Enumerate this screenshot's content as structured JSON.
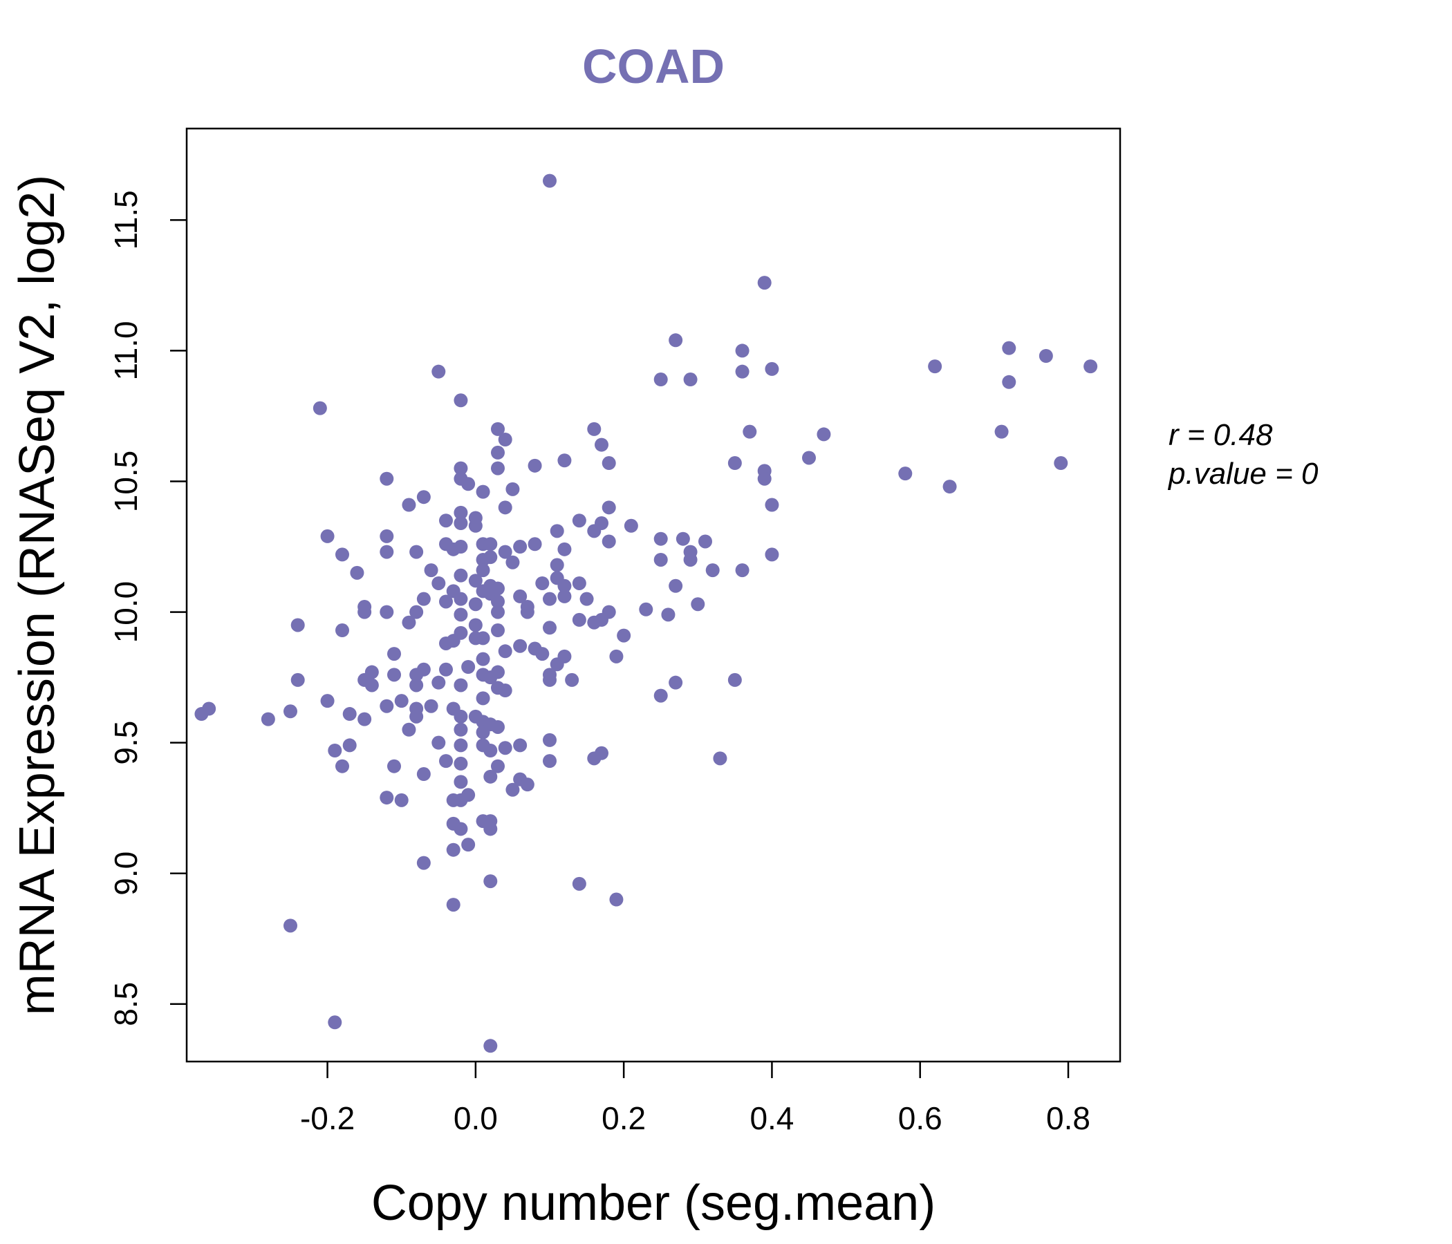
{
  "colors": {
    "point": "#7570b3",
    "title": "#7570b3",
    "axis": "#000000"
  },
  "annotation": {
    "r_text": "r = 0.48",
    "p_text": "p.value = 0"
  },
  "chart_data": {
    "type": "scatter",
    "title": "COAD",
    "xlabel": "Copy number (seg.mean)",
    "ylabel": "mRNA Expression (RNASeq V2, log2)",
    "xlim": [
      -0.39,
      0.87
    ],
    "ylim": [
      8.28,
      11.85
    ],
    "xticks": [
      -0.2,
      0.0,
      0.2,
      0.4,
      0.6,
      0.8
    ],
    "xtick_labels": [
      "-0.2",
      "0.0",
      "0.2",
      "0.4",
      "0.6",
      "0.8"
    ],
    "yticks": [
      8.5,
      9.0,
      9.5,
      10.0,
      10.5,
      11.0,
      11.5
    ],
    "ytick_labels": [
      "8.5",
      "9.0",
      "9.5",
      "10.0",
      "10.5",
      "11.0",
      "11.5"
    ],
    "grid": false,
    "points": [
      [
        0.1,
        11.65
      ],
      [
        0.39,
        11.26
      ],
      [
        0.27,
        11.04
      ],
      [
        0.36,
        11.0
      ],
      [
        0.72,
        11.01
      ],
      [
        0.77,
        10.98
      ],
      [
        0.62,
        10.94
      ],
      [
        0.83,
        10.94
      ],
      [
        0.4,
        10.93
      ],
      [
        0.36,
        10.92
      ],
      [
        -0.05,
        10.92
      ],
      [
        0.25,
        10.89
      ],
      [
        0.29,
        10.89
      ],
      [
        0.72,
        10.88
      ],
      [
        -0.02,
        10.81
      ],
      [
        -0.21,
        10.78
      ],
      [
        0.16,
        10.7
      ],
      [
        0.03,
        10.7
      ],
      [
        0.37,
        10.69
      ],
      [
        0.71,
        10.69
      ],
      [
        0.47,
        10.68
      ],
      [
        0.04,
        10.66
      ],
      [
        0.17,
        10.64
      ],
      [
        0.03,
        10.61
      ],
      [
        0.45,
        10.59
      ],
      [
        0.12,
        10.58
      ],
      [
        0.79,
        10.57
      ],
      [
        0.35,
        10.57
      ],
      [
        0.18,
        10.57
      ],
      [
        0.03,
        10.55
      ],
      [
        0.08,
        10.56
      ],
      [
        -0.02,
        10.55
      ],
      [
        0.39,
        10.54
      ],
      [
        0.58,
        10.53
      ],
      [
        -0.02,
        10.51
      ],
      [
        0.39,
        10.51
      ],
      [
        -0.12,
        10.51
      ],
      [
        -0.01,
        10.49
      ],
      [
        0.64,
        10.48
      ],
      [
        0.05,
        10.47
      ],
      [
        0.01,
        10.46
      ],
      [
        -0.07,
        10.44
      ],
      [
        -0.09,
        10.41
      ],
      [
        0.04,
        10.4
      ],
      [
        0.4,
        10.41
      ],
      [
        0.18,
        10.4
      ],
      [
        -0.02,
        10.38
      ],
      [
        0.0,
        10.36
      ],
      [
        -0.04,
        10.35
      ],
      [
        0.14,
        10.35
      ],
      [
        0.17,
        10.34
      ],
      [
        -0.02,
        10.34
      ],
      [
        0.21,
        10.33
      ],
      [
        0.0,
        10.33
      ],
      [
        0.16,
        10.31
      ],
      [
        0.11,
        10.31
      ],
      [
        -0.2,
        10.29
      ],
      [
        -0.12,
        10.29
      ],
      [
        0.25,
        10.28
      ],
      [
        0.28,
        10.28
      ],
      [
        0.31,
        10.27
      ],
      [
        0.18,
        10.27
      ],
      [
        0.01,
        10.26
      ],
      [
        0.02,
        10.26
      ],
      [
        -0.04,
        10.26
      ],
      [
        -0.02,
        10.25
      ],
      [
        0.06,
        10.25
      ],
      [
        0.08,
        10.26
      ],
      [
        0.12,
        10.24
      ],
      [
        0.04,
        10.23
      ],
      [
        -0.12,
        10.23
      ],
      [
        -0.08,
        10.23
      ],
      [
        -0.03,
        10.24
      ],
      [
        0.29,
        10.23
      ],
      [
        0.4,
        10.22
      ],
      [
        -0.18,
        10.22
      ],
      [
        0.02,
        10.21
      ],
      [
        0.01,
        10.2
      ],
      [
        0.05,
        10.19
      ],
      [
        0.25,
        10.2
      ],
      [
        0.29,
        10.2
      ],
      [
        0.11,
        10.18
      ],
      [
        0.32,
        10.16
      ],
      [
        0.36,
        10.16
      ],
      [
        -0.06,
        10.16
      ],
      [
        0.01,
        10.16
      ],
      [
        -0.16,
        10.15
      ],
      [
        -0.02,
        10.14
      ],
      [
        0.11,
        10.13
      ],
      [
        0.0,
        10.12
      ],
      [
        0.14,
        10.11
      ],
      [
        0.09,
        10.11
      ],
      [
        -0.05,
        10.11
      ],
      [
        0.12,
        10.1
      ],
      [
        0.27,
        10.1
      ],
      [
        0.02,
        10.1
      ],
      [
        0.03,
        10.09
      ],
      [
        -0.03,
        10.08
      ],
      [
        0.01,
        10.08
      ],
      [
        0.02,
        10.07
      ],
      [
        0.06,
        10.06
      ],
      [
        0.12,
        10.06
      ],
      [
        0.15,
        10.05
      ],
      [
        0.1,
        10.05
      ],
      [
        -0.07,
        10.05
      ],
      [
        -0.02,
        10.05
      ],
      [
        0.03,
        10.04
      ],
      [
        -0.04,
        10.04
      ],
      [
        0.0,
        10.03
      ],
      [
        0.3,
        10.03
      ],
      [
        0.07,
        10.02
      ],
      [
        -0.15,
        10.02
      ],
      [
        0.23,
        10.01
      ],
      [
        0.18,
        10.0
      ],
      [
        0.07,
        10.0
      ],
      [
        -0.15,
        10.0
      ],
      [
        0.03,
        10.0
      ],
      [
        -0.08,
        10.0
      ],
      [
        -0.12,
        10.0
      ],
      [
        0.26,
        9.99
      ],
      [
        -0.02,
        9.99
      ],
      [
        0.14,
        9.97
      ],
      [
        0.17,
        9.97
      ],
      [
        0.16,
        9.96
      ],
      [
        -0.09,
        9.96
      ],
      [
        0.1,
        9.94
      ],
      [
        0.0,
        9.95
      ],
      [
        -0.24,
        9.95
      ],
      [
        0.03,
        9.93
      ],
      [
        -0.18,
        9.93
      ],
      [
        -0.02,
        9.92
      ],
      [
        0.2,
        9.91
      ],
      [
        0.0,
        9.9
      ],
      [
        0.01,
        9.9
      ],
      [
        -0.03,
        9.89
      ],
      [
        -0.04,
        9.88
      ],
      [
        0.06,
        9.87
      ],
      [
        0.08,
        9.86
      ],
      [
        0.04,
        9.85
      ],
      [
        0.12,
        9.83
      ],
      [
        0.09,
        9.84
      ],
      [
        -0.11,
        9.84
      ],
      [
        0.01,
        9.82
      ],
      [
        0.19,
        9.83
      ],
      [
        0.11,
        9.8
      ],
      [
        -0.01,
        9.79
      ],
      [
        -0.04,
        9.78
      ],
      [
        -0.07,
        9.78
      ],
      [
        0.03,
        9.77
      ],
      [
        -0.14,
        9.77
      ],
      [
        -0.08,
        9.76
      ],
      [
        -0.11,
        9.76
      ],
      [
        0.1,
        9.76
      ],
      [
        0.01,
        9.76
      ],
      [
        0.02,
        9.75
      ],
      [
        -0.24,
        9.74
      ],
      [
        -0.15,
        9.74
      ],
      [
        0.35,
        9.74
      ],
      [
        0.13,
        9.74
      ],
      [
        0.1,
        9.74
      ],
      [
        0.27,
        9.73
      ],
      [
        -0.05,
        9.73
      ],
      [
        -0.02,
        9.72
      ],
      [
        -0.14,
        9.72
      ],
      [
        -0.08,
        9.72
      ],
      [
        0.03,
        9.71
      ],
      [
        0.04,
        9.7
      ],
      [
        0.25,
        9.68
      ],
      [
        0.01,
        9.67
      ],
      [
        -0.1,
        9.66
      ],
      [
        -0.2,
        9.66
      ],
      [
        -0.12,
        9.64
      ],
      [
        -0.06,
        9.64
      ],
      [
        -0.08,
        9.63
      ],
      [
        -0.03,
        9.63
      ],
      [
        -0.36,
        9.63
      ],
      [
        -0.25,
        9.62
      ],
      [
        -0.37,
        9.61
      ],
      [
        -0.17,
        9.61
      ],
      [
        -0.02,
        9.6
      ],
      [
        -0.28,
        9.59
      ],
      [
        -0.08,
        9.6
      ],
      [
        0.0,
        9.6
      ],
      [
        -0.15,
        9.59
      ],
      [
        0.01,
        9.58
      ],
      [
        0.02,
        9.57
      ],
      [
        0.03,
        9.56
      ],
      [
        -0.02,
        9.55
      ],
      [
        -0.09,
        9.55
      ],
      [
        0.01,
        9.54
      ],
      [
        0.1,
        9.51
      ],
      [
        -0.05,
        9.5
      ],
      [
        0.06,
        9.49
      ],
      [
        0.01,
        9.49
      ],
      [
        -0.17,
        9.49
      ],
      [
        -0.02,
        9.49
      ],
      [
        0.04,
        9.48
      ],
      [
        0.02,
        9.47
      ],
      [
        -0.19,
        9.47
      ],
      [
        0.17,
        9.46
      ],
      [
        0.16,
        9.44
      ],
      [
        0.33,
        9.44
      ],
      [
        0.1,
        9.43
      ],
      [
        -0.04,
        9.43
      ],
      [
        -0.02,
        9.42
      ],
      [
        0.03,
        9.41
      ],
      [
        -0.11,
        9.41
      ],
      [
        -0.18,
        9.41
      ],
      [
        -0.07,
        9.38
      ],
      [
        0.02,
        9.37
      ],
      [
        0.06,
        9.36
      ],
      [
        0.07,
        9.34
      ],
      [
        -0.02,
        9.35
      ],
      [
        0.05,
        9.32
      ],
      [
        -0.01,
        9.3
      ],
      [
        -0.12,
        9.29
      ],
      [
        -0.1,
        9.28
      ],
      [
        -0.02,
        9.28
      ],
      [
        -0.03,
        9.28
      ],
      [
        0.02,
        9.2
      ],
      [
        0.01,
        9.2
      ],
      [
        -0.03,
        9.19
      ],
      [
        -0.02,
        9.17
      ],
      [
        0.02,
        9.17
      ],
      [
        -0.01,
        9.11
      ],
      [
        -0.03,
        9.09
      ],
      [
        -0.07,
        9.04
      ],
      [
        0.02,
        8.97
      ],
      [
        0.14,
        8.96
      ],
      [
        0.19,
        8.9
      ],
      [
        -0.03,
        8.88
      ],
      [
        -0.25,
        8.8
      ],
      [
        -0.19,
        8.43
      ],
      [
        0.02,
        8.34
      ]
    ]
  }
}
